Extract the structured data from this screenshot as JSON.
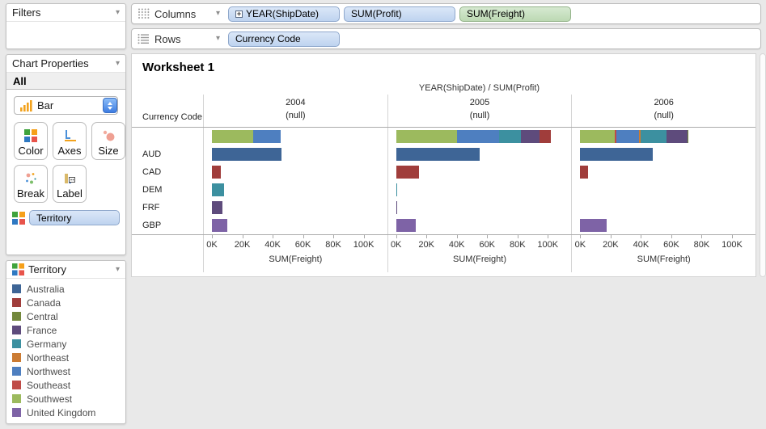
{
  "filters_panel": {
    "title": "Filters"
  },
  "properties_panel": {
    "title": "Chart Properties",
    "scope_label": "All",
    "chart_type": {
      "selected": "Bar",
      "icon": "bar-chart-type-icon"
    },
    "buttons": [
      {
        "label": "Color",
        "icon": "color-grid-icon"
      },
      {
        "label": "Axes",
        "icon": "axes-icon"
      },
      {
        "label": "Size",
        "icon": "size-icon"
      },
      {
        "label": "Break",
        "icon": "break-icon"
      },
      {
        "label": "Label",
        "icon": "label-icon"
      }
    ],
    "encoding_pill": {
      "text": "Territory",
      "color": "blue"
    }
  },
  "shelves": {
    "columns": {
      "label": "Columns",
      "pills": [
        {
          "text": "YEAR(ShipDate)",
          "color": "blue",
          "expandable": true
        },
        {
          "text": "SUM(Profit)",
          "color": "blue"
        },
        {
          "text": "SUM(Freight)",
          "color": "green"
        }
      ]
    },
    "rows": {
      "label": "Rows",
      "pills": [
        {
          "text": "Currency Code",
          "color": "blue"
        }
      ]
    }
  },
  "worksheet": {
    "title": "Worksheet 1"
  },
  "legend": {
    "title": "Territory",
    "items": [
      "Australia",
      "Canada",
      "Central",
      "France",
      "Germany",
      "Northeast",
      "Northwest",
      "Southeast",
      "Southwest",
      "United Kingdom"
    ]
  },
  "chart_data": {
    "type": "bar",
    "orientation": "horizontal",
    "stacked": true,
    "title": "YEAR(ShipDate)  /  SUM(Profit)",
    "row_dimension": "Currency Code",
    "row_labels": [
      "",
      "AUD",
      "CAD",
      "DEM",
      "FRF",
      "GBP"
    ],
    "xlabel": "SUM(Freight)",
    "axis_max": 105000,
    "grid": false,
    "legend_position": "left",
    "x_ticks": [
      {
        "label": "0K",
        "value": 0
      },
      {
        "label": "20K",
        "value": 20000
      },
      {
        "label": "40K",
        "value": 40000
      },
      {
        "label": "60K",
        "value": 60000
      },
      {
        "label": "80K",
        "value": 80000
      },
      {
        "label": "100K",
        "value": 100000
      }
    ],
    "panels": [
      {
        "year": "2004",
        "subtitle": "(null)",
        "rows": [
          [
            {
              "territory": "Southwest",
              "value": 27000
            },
            {
              "territory": "Northwest",
              "value": 18500
            }
          ],
          [
            {
              "territory": "Australia",
              "value": 46000
            }
          ],
          [
            {
              "territory": "Canada",
              "value": 6000
            }
          ],
          [
            {
              "territory": "Germany",
              "value": 8000
            }
          ],
          [
            {
              "territory": "France",
              "value": 7000
            }
          ],
          [
            {
              "territory": "United Kingdom",
              "value": 10000
            }
          ]
        ]
      },
      {
        "year": "2005",
        "subtitle": "(null)",
        "rows": [
          [
            {
              "territory": "Southwest",
              "value": 40000
            },
            {
              "territory": "Northwest",
              "value": 28000
            },
            {
              "territory": "Germany",
              "value": 14500
            },
            {
              "territory": "France",
              "value": 12000
            },
            {
              "territory": "Canada",
              "value": 7500
            }
          ],
          [
            {
              "territory": "Australia",
              "value": 55000
            }
          ],
          [
            {
              "territory": "Canada",
              "value": 15000
            }
          ],
          [
            {
              "territory": "Germany",
              "value": 300
            }
          ],
          [
            {
              "territory": "France",
              "value": 900
            }
          ],
          [
            {
              "territory": "United Kingdom",
              "value": 13000
            }
          ]
        ]
      },
      {
        "year": "2006",
        "subtitle": "(null)",
        "rows": [
          [
            {
              "territory": "Southwest",
              "value": 23000
            },
            {
              "territory": "Southeast",
              "value": 800
            },
            {
              "territory": "Northwest",
              "value": 15000
            },
            {
              "territory": "Northeast",
              "value": 800
            },
            {
              "territory": "Germany",
              "value": 17500
            },
            {
              "territory": "France",
              "value": 13500
            },
            {
              "territory": "Central",
              "value": 800
            }
          ],
          [
            {
              "territory": "Australia",
              "value": 48000
            }
          ],
          [
            {
              "territory": "Canada",
              "value": 5000
            }
          ],
          [],
          [],
          [
            {
              "territory": "United Kingdom",
              "value": 17500
            }
          ]
        ]
      }
    ],
    "colors": {
      "Australia": "#3E6596",
      "Canada": "#A03D3B",
      "Central": "#73883C",
      "France": "#5E4B7C",
      "Germany": "#3C90A0",
      "Northeast": "#CB7B33",
      "Northwest": "#4E7FC0",
      "Southeast": "#BF4B47",
      "Southwest": "#9CBA5E",
      "United Kingdom": "#7E63A6"
    }
  }
}
